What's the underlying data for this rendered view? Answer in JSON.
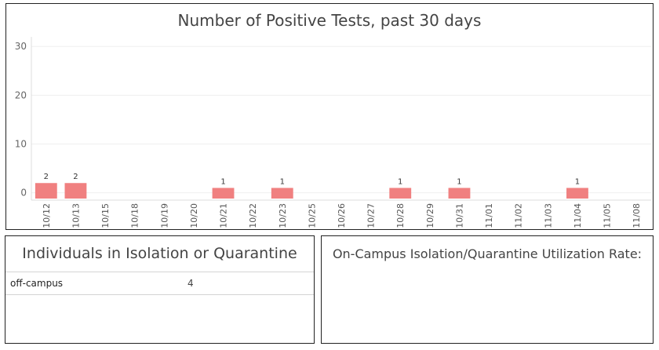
{
  "chart": {
    "title": "Number of Positive Tests, past 30 days"
  },
  "chart_data": {
    "type": "bar",
    "title": "Number of Positive Tests, past 30 days",
    "xlabel": "",
    "ylabel": "",
    "categories": [
      "10/12",
      "10/13",
      "10/15",
      "10/18",
      "10/19",
      "10/20",
      "10/21",
      "10/22",
      "10/23",
      "10/25",
      "10/26",
      "10/27",
      "10/28",
      "10/29",
      "10/31",
      "11/01",
      "11/02",
      "11/03",
      "11/04",
      "11/05",
      "11/08"
    ],
    "values": [
      2,
      2,
      0,
      0,
      0,
      0,
      1,
      0,
      1,
      0,
      0,
      0,
      1,
      0,
      1,
      0,
      0,
      0,
      1,
      0,
      0
    ],
    "data_labels": [
      "2",
      "2",
      "",
      "",
      "",
      "",
      "1",
      "",
      "1",
      "",
      "",
      "",
      "1",
      "",
      "1",
      "",
      "",
      "",
      "1",
      "",
      ""
    ],
    "y_ticks": [
      0,
      10,
      20,
      30
    ],
    "ylim": [
      -1.5,
      31
    ],
    "grid": true,
    "bar_color": "#f08080"
  },
  "isolation": {
    "title": "Individuals in Isolation or Quarantine",
    "rows": [
      {
        "location": "off-campus",
        "count": "4"
      }
    ]
  },
  "utilization": {
    "title": "On-Campus Isolation/Quarantine Utilization Rate:"
  }
}
